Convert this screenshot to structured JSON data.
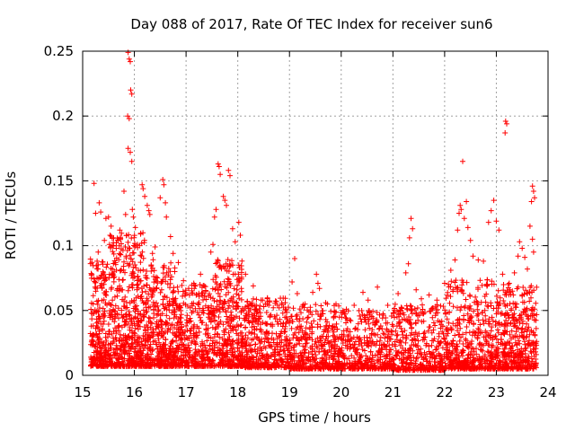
{
  "chart_data": {
    "type": "scatter",
    "title": "Day 088 of 2017, Rate Of TEC Index for receiver sun6",
    "xlabel": "GPS time / hours",
    "ylabel": "ROTI / TECUs",
    "xlim": [
      15,
      24
    ],
    "ylim": [
      0,
      0.25
    ],
    "xticks": [
      15,
      16,
      17,
      18,
      19,
      20,
      21,
      22,
      23,
      24
    ],
    "xtick_labels": [
      "15",
      "16",
      "17",
      "18",
      "19",
      "20",
      "21",
      "22",
      "23",
      "24"
    ],
    "yticks": [
      0,
      0.05,
      0.1,
      0.15,
      0.2,
      0.25
    ],
    "ytick_labels": [
      "0",
      "0.05",
      "0.1",
      "0.15",
      "0.2",
      "0.25"
    ],
    "grid": true,
    "marker": "plus",
    "color": "#ff0000",
    "series": [
      {
        "name": "ROTI",
        "points": [
          [
            15.22,
            0.148
          ],
          [
            15.25,
            0.125
          ],
          [
            15.32,
            0.133
          ],
          [
            15.35,
            0.126
          ],
          [
            15.45,
            0.121
          ],
          [
            15.5,
            0.122
          ],
          [
            15.3,
            0.095
          ],
          [
            15.28,
            0.088
          ],
          [
            15.42,
            0.104
          ],
          [
            15.55,
            0.115
          ],
          [
            15.6,
            0.106
          ],
          [
            15.65,
            0.098
          ],
          [
            15.72,
            0.112
          ],
          [
            15.8,
            0.142
          ],
          [
            15.83,
            0.124
          ],
          [
            15.88,
            0.249
          ],
          [
            15.9,
            0.244
          ],
          [
            15.92,
            0.242
          ],
          [
            15.93,
            0.22
          ],
          [
            15.95,
            0.217
          ],
          [
            15.87,
            0.2
          ],
          [
            15.9,
            0.198
          ],
          [
            15.88,
            0.175
          ],
          [
            15.92,
            0.172
          ],
          [
            15.95,
            0.165
          ],
          [
            15.96,
            0.128
          ],
          [
            15.98,
            0.122
          ],
          [
            16.02,
            0.114
          ],
          [
            16.15,
            0.147
          ],
          [
            16.17,
            0.144
          ],
          [
            16.2,
            0.138
          ],
          [
            16.25,
            0.131
          ],
          [
            16.28,
            0.127
          ],
          [
            16.3,
            0.124
          ],
          [
            16.12,
            0.109
          ],
          [
            16.1,
            0.1
          ],
          [
            16.35,
            0.094
          ],
          [
            16.4,
            0.099
          ],
          [
            16.5,
            0.137
          ],
          [
            16.55,
            0.151
          ],
          [
            16.57,
            0.147
          ],
          [
            16.6,
            0.133
          ],
          [
            16.62,
            0.122
          ],
          [
            16.7,
            0.107
          ],
          [
            16.75,
            0.094
          ],
          [
            16.85,
            0.087
          ],
          [
            16.95,
            0.073
          ],
          [
            17.05,
            0.067
          ],
          [
            17.15,
            0.071
          ],
          [
            17.28,
            0.078
          ],
          [
            17.35,
            0.069
          ],
          [
            17.48,
            0.095
          ],
          [
            17.52,
            0.101
          ],
          [
            17.55,
            0.122
          ],
          [
            17.58,
            0.128
          ],
          [
            17.62,
            0.163
          ],
          [
            17.64,
            0.161
          ],
          [
            17.66,
            0.155
          ],
          [
            17.72,
            0.138
          ],
          [
            17.75,
            0.135
          ],
          [
            17.78,
            0.131
          ],
          [
            17.82,
            0.158
          ],
          [
            17.85,
            0.154
          ],
          [
            17.9,
            0.113
          ],
          [
            17.95,
            0.103
          ],
          [
            18.02,
            0.118
          ],
          [
            18.05,
            0.108
          ],
          [
            18.15,
            0.078
          ],
          [
            18.3,
            0.069
          ],
          [
            18.45,
            0.058
          ],
          [
            18.6,
            0.054
          ],
          [
            18.8,
            0.052
          ],
          [
            19.1,
            0.09
          ],
          [
            19.05,
            0.072
          ],
          [
            19.15,
            0.063
          ],
          [
            19.3,
            0.055
          ],
          [
            19.45,
            0.064
          ],
          [
            19.52,
            0.078
          ],
          [
            19.55,
            0.071
          ],
          [
            19.58,
            0.067
          ],
          [
            19.7,
            0.056
          ],
          [
            19.9,
            0.055
          ],
          [
            20.1,
            0.051
          ],
          [
            20.25,
            0.054
          ],
          [
            20.42,
            0.064
          ],
          [
            20.52,
            0.058
          ],
          [
            20.7,
            0.068
          ],
          [
            20.9,
            0.054
          ],
          [
            21.1,
            0.063
          ],
          [
            21.25,
            0.079
          ],
          [
            21.3,
            0.086
          ],
          [
            21.32,
            0.106
          ],
          [
            21.35,
            0.121
          ],
          [
            21.38,
            0.113
          ],
          [
            21.45,
            0.066
          ],
          [
            21.55,
            0.059
          ],
          [
            21.7,
            0.062
          ],
          [
            21.85,
            0.058
          ],
          [
            22.0,
            0.071
          ],
          [
            22.12,
            0.081
          ],
          [
            22.2,
            0.089
          ],
          [
            22.25,
            0.112
          ],
          [
            22.28,
            0.125
          ],
          [
            22.3,
            0.131
          ],
          [
            22.32,
            0.128
          ],
          [
            22.35,
            0.165
          ],
          [
            22.38,
            0.121
          ],
          [
            22.42,
            0.134
          ],
          [
            22.45,
            0.114
          ],
          [
            22.5,
            0.104
          ],
          [
            22.55,
            0.092
          ],
          [
            22.65,
            0.089
          ],
          [
            22.75,
            0.088
          ],
          [
            22.85,
            0.118
          ],
          [
            22.9,
            0.127
          ],
          [
            22.95,
            0.135
          ],
          [
            23.0,
            0.119
          ],
          [
            23.05,
            0.112
          ],
          [
            23.12,
            0.078
          ],
          [
            23.18,
            0.196
          ],
          [
            23.2,
            0.194
          ],
          [
            23.17,
            0.187
          ],
          [
            23.25,
            0.071
          ],
          [
            23.35,
            0.079
          ],
          [
            23.42,
            0.092
          ],
          [
            23.45,
            0.103
          ],
          [
            23.5,
            0.098
          ],
          [
            23.55,
            0.091
          ],
          [
            23.6,
            0.082
          ],
          [
            23.65,
            0.115
          ],
          [
            23.7,
            0.146
          ],
          [
            23.72,
            0.142
          ],
          [
            23.74,
            0.137
          ],
          [
            23.68,
            0.134
          ],
          [
            23.7,
            0.105
          ],
          [
            23.72,
            0.095
          ]
        ],
        "bulk_bands": [
          {
            "x_from": 15.15,
            "x_to": 15.5,
            "y_min": 0.007,
            "y_max": 0.09,
            "count": 260
          },
          {
            "x_from": 15.5,
            "x_to": 16.2,
            "y_min": 0.007,
            "y_max": 0.11,
            "count": 520
          },
          {
            "x_from": 16.2,
            "x_to": 16.8,
            "y_min": 0.007,
            "y_max": 0.09,
            "count": 420
          },
          {
            "x_from": 16.8,
            "x_to": 17.5,
            "y_min": 0.007,
            "y_max": 0.07,
            "count": 360
          },
          {
            "x_from": 17.5,
            "x_to": 18.1,
            "y_min": 0.007,
            "y_max": 0.09,
            "count": 380
          },
          {
            "x_from": 18.1,
            "x_to": 19.0,
            "y_min": 0.006,
            "y_max": 0.06,
            "count": 420
          },
          {
            "x_from": 19.0,
            "x_to": 20.0,
            "y_min": 0.005,
            "y_max": 0.055,
            "count": 430
          },
          {
            "x_from": 20.0,
            "x_to": 21.0,
            "y_min": 0.005,
            "y_max": 0.05,
            "count": 380
          },
          {
            "x_from": 21.0,
            "x_to": 22.0,
            "y_min": 0.004,
            "y_max": 0.055,
            "count": 380
          },
          {
            "x_from": 22.0,
            "x_to": 23.0,
            "y_min": 0.005,
            "y_max": 0.075,
            "count": 480
          },
          {
            "x_from": 23.0,
            "x_to": 23.78,
            "y_min": 0.005,
            "y_max": 0.07,
            "count": 420
          }
        ]
      }
    ]
  }
}
